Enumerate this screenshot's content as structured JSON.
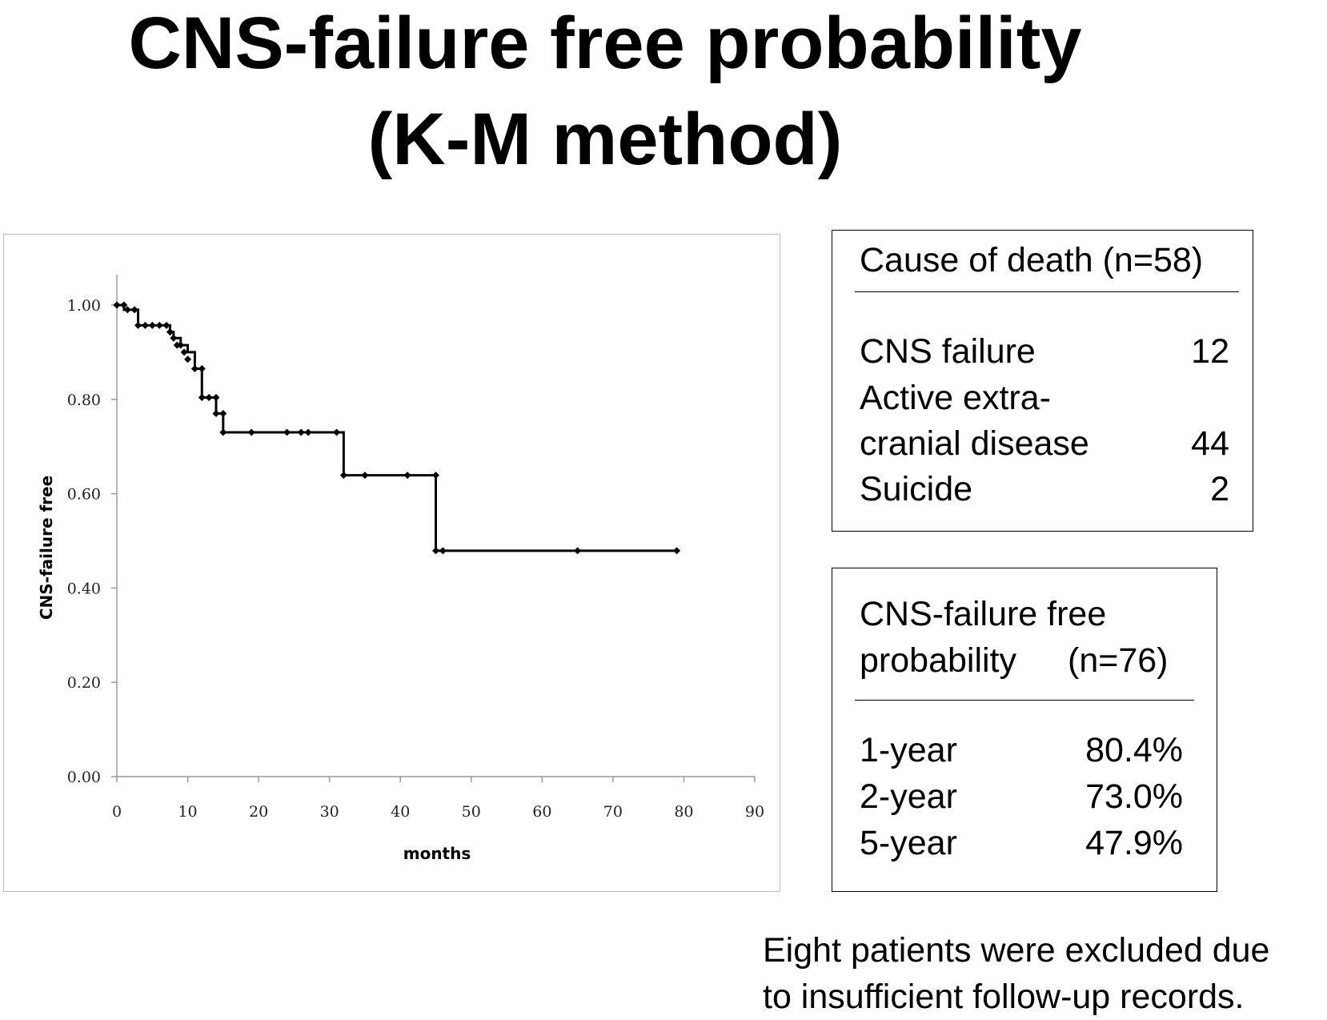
{
  "title": {
    "line1": "CNS-failure free probability",
    "line2": "(K-M method)"
  },
  "chart_data": {
    "type": "line",
    "style": "step (Kaplan-Meier) with censor markers",
    "xlabel": "months",
    "ylabel": "CNS-failure free",
    "xlim": [
      0,
      90
    ],
    "ylim": [
      0,
      1.0
    ],
    "x_ticks": [
      "0",
      "10",
      "20",
      "30",
      "40",
      "50",
      "60",
      "70",
      "80",
      "90"
    ],
    "y_ticks": [
      "0.00",
      "0.20",
      "0.40",
      "0.60",
      "0.80",
      "1.00"
    ],
    "grid": false,
    "legend": "none",
    "line_color": "#000000",
    "steps": [
      {
        "x": 0,
        "y": 1.0
      },
      {
        "x": 1,
        "y": 0.99
      },
      {
        "x": 3,
        "y": 0.957
      },
      {
        "x": 7.5,
        "y": 0.943
      },
      {
        "x": 8,
        "y": 0.93
      },
      {
        "x": 9,
        "y": 0.915
      },
      {
        "x": 10,
        "y": 0.9
      },
      {
        "x": 11,
        "y": 0.865
      },
      {
        "x": 12,
        "y": 0.804
      },
      {
        "x": 14,
        "y": 0.77
      },
      {
        "x": 15,
        "y": 0.73
      },
      {
        "x": 32,
        "y": 0.639
      },
      {
        "x": 45,
        "y": 0.479
      },
      {
        "x": 79,
        "y": 0.479
      }
    ],
    "markers": [
      {
        "x": 0,
        "y": 1.0
      },
      {
        "x": 1,
        "y": 1.0
      },
      {
        "x": 1.5,
        "y": 0.99
      },
      {
        "x": 2.5,
        "y": 0.99
      },
      {
        "x": 3,
        "y": 0.957
      },
      {
        "x": 4,
        "y": 0.957
      },
      {
        "x": 5,
        "y": 0.957
      },
      {
        "x": 6,
        "y": 0.957
      },
      {
        "x": 7,
        "y": 0.957
      },
      {
        "x": 7.5,
        "y": 0.943
      },
      {
        "x": 8,
        "y": 0.93
      },
      {
        "x": 8.5,
        "y": 0.915
      },
      {
        "x": 9,
        "y": 0.915
      },
      {
        "x": 9.5,
        "y": 0.9
      },
      {
        "x": 10,
        "y": 0.885
      },
      {
        "x": 11,
        "y": 0.865
      },
      {
        "x": 12,
        "y": 0.865
      },
      {
        "x": 12,
        "y": 0.804
      },
      {
        "x": 13,
        "y": 0.804
      },
      {
        "x": 14,
        "y": 0.804
      },
      {
        "x": 14,
        "y": 0.77
      },
      {
        "x": 15,
        "y": 0.77
      },
      {
        "x": 15,
        "y": 0.73
      },
      {
        "x": 19,
        "y": 0.73
      },
      {
        "x": 24,
        "y": 0.73
      },
      {
        "x": 26,
        "y": 0.73
      },
      {
        "x": 27,
        "y": 0.73
      },
      {
        "x": 31,
        "y": 0.73
      },
      {
        "x": 32,
        "y": 0.639
      },
      {
        "x": 35,
        "y": 0.639
      },
      {
        "x": 41,
        "y": 0.639
      },
      {
        "x": 45,
        "y": 0.639
      },
      {
        "x": 45,
        "y": 0.479
      },
      {
        "x": 46,
        "y": 0.479
      },
      {
        "x": 65,
        "y": 0.479
      },
      {
        "x": 79,
        "y": 0.479
      }
    ]
  },
  "cause_of_death": {
    "heading": "Cause of death (n=58)",
    "rows": [
      {
        "label": "CNS failure",
        "value": "12"
      },
      {
        "label": "Active extra-",
        "value": ""
      },
      {
        "label": "cranial disease",
        "value": "44"
      },
      {
        "label": "Suicide",
        "value": "2"
      }
    ]
  },
  "probability": {
    "heading_line1": "CNS-failure free",
    "heading_line2": "probability",
    "heading_n": "(n=76)",
    "rows": [
      {
        "label": "1-year",
        "value": "80.4%"
      },
      {
        "label": "2-year",
        "value": "73.0%"
      },
      {
        "label": "5-year",
        "value": "47.9%"
      }
    ]
  },
  "footnote": {
    "line1": "Eight patients were excluded due",
    "line2": "to insufficient follow-up records."
  }
}
